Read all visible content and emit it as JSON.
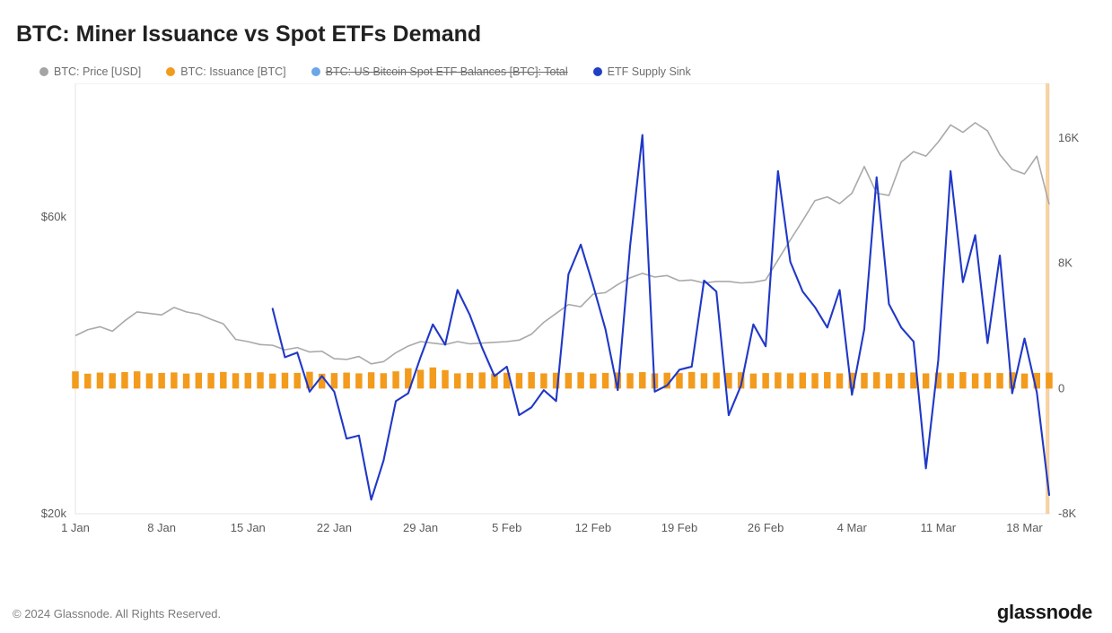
{
  "title": "BTC: Miner Issuance vs Spot ETFs Demand",
  "legend": {
    "items": [
      {
        "label": "BTC: Price [USD]",
        "color": "#a4a4a4",
        "strike": false
      },
      {
        "label": "BTC: Issuance [BTC]",
        "color": "#f29b1d",
        "strike": false
      },
      {
        "label": "BTC: US Bitcoin Spot ETF Balances [BTC]: Total",
        "color": "#6aa7e8",
        "strike": true
      },
      {
        "label": "ETF Supply Sink",
        "color": "#1f3fc4",
        "strike": false
      }
    ]
  },
  "chart": {
    "plot_bg": "#ffffff",
    "border_color": "#e5e5e5",
    "right_bar_color": "#f6c27a",
    "x": {
      "ticks": [
        "1 Jan",
        "8 Jan",
        "15 Jan",
        "22 Jan",
        "29 Jan",
        "5 Feb",
        "12 Feb",
        "19 Feb",
        "26 Feb",
        "4 Mar",
        "11 Mar",
        "18 Mar"
      ],
      "min": 0,
      "max": 79
    },
    "y_left": {
      "label_color": "#5a5a5a",
      "ticks": [
        {
          "v": 60000,
          "label": "$60k"
        },
        {
          "v": 20000,
          "label": "$20k"
        }
      ],
      "min": 20000,
      "max": 78000
    },
    "y_right": {
      "label_color": "#5a5a5a",
      "ticks": [
        {
          "v": 16000,
          "label": "16K"
        },
        {
          "v": 8000,
          "label": "8K"
        },
        {
          "v": 0,
          "label": "0"
        },
        {
          "v": -8000,
          "label": "-8K"
        }
      ],
      "min": -8000,
      "max": 19500
    },
    "price": {
      "color": "#a9a9a9",
      "width": 1.6,
      "values": [
        44000,
        44800,
        45200,
        44600,
        46000,
        47200,
        47000,
        46800,
        47800,
        47200,
        46900,
        46200,
        45600,
        43500,
        43200,
        42800,
        42700,
        42100,
        42400,
        41800,
        41900,
        40900,
        40800,
        41200,
        40200,
        40500,
        41700,
        42600,
        43200,
        43000,
        42800,
        43200,
        42900,
        43000,
        43100,
        43200,
        43400,
        44200,
        45800,
        47000,
        48200,
        47900,
        49600,
        49800,
        50900,
        51800,
        52400,
        51900,
        52100,
        51400,
        51500,
        51100,
        51300,
        51300,
        51100,
        51200,
        51500,
        54200,
        56900,
        59500,
        62200,
        62700,
        61800,
        63200,
        66800,
        63200,
        62900,
        67400,
        68800,
        68200,
        70100,
        72400,
        71400,
        72700,
        71600,
        68400,
        66400,
        65800,
        68200,
        61700
      ]
    },
    "etf": {
      "color": "#2038c7",
      "width": 2.1,
      "values": [
        null,
        null,
        null,
        null,
        null,
        null,
        null,
        null,
        null,
        null,
        null,
        null,
        null,
        null,
        null,
        null,
        5100,
        2000,
        2300,
        -200,
        800,
        -200,
        -3200,
        -3000,
        -7100,
        -4600,
        -800,
        -300,
        2000,
        4100,
        2800,
        6300,
        4700,
        2600,
        800,
        1400,
        -1700,
        -1200,
        -100,
        -800,
        7300,
        9200,
        6600,
        3800,
        -100,
        9100,
        16200,
        -200,
        200,
        1200,
        1400,
        6900,
        6200,
        -1700,
        200,
        4100,
        2700,
        13900,
        8100,
        6200,
        5200,
        3900,
        6300,
        -400,
        3800,
        13500,
        5400,
        3900,
        3000,
        -5100,
        1800,
        13900,
        6800,
        9800,
        2900,
        8500,
        -300,
        3200,
        -250,
        -6800
      ]
    },
    "issuance": {
      "color": "#f29b1d",
      "bar_width_ratio": 0.55,
      "values": [
        1100,
        950,
        1020,
        980,
        1050,
        1100,
        970,
        1000,
        1030,
        960,
        1010,
        990,
        1060,
        980,
        1000,
        1040,
        960,
        1010,
        1000,
        1070,
        950,
        990,
        1020,
        970,
        1040,
        980,
        1100,
        1300,
        1200,
        1350,
        1180,
        970,
        1000,
        1030,
        960,
        1010,
        990,
        1050,
        970,
        1010,
        1000,
        1040,
        960,
        1000,
        1030,
        980,
        1050,
        970,
        1010,
        990,
        1060,
        980,
        1020,
        1000,
        1040,
        960,
        990,
        1030,
        970,
        1020,
        980,
        1050,
        970,
        1010,
        1000,
        1040,
        960,
        1000,
        1030,
        970,
        1020,
        980,
        1050,
        970,
        1010,
        990,
        1040,
        960,
        1000,
        1020
      ]
    }
  },
  "footer": "© 2024 Glassnode. All Rights Reserved.",
  "brand": "glassnode"
}
